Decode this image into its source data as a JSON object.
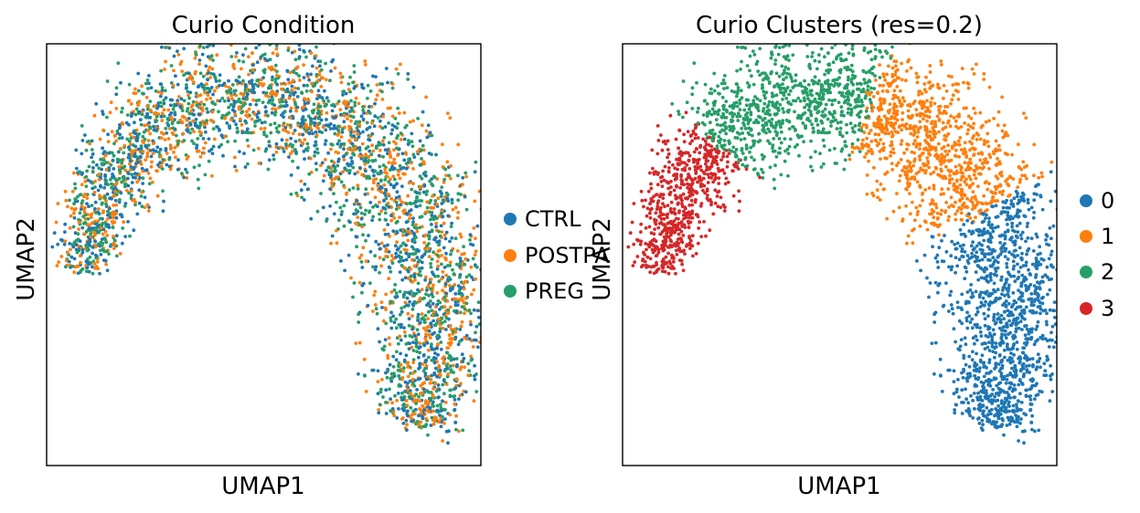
{
  "chart_data": [
    {
      "type": "scatter",
      "title": "Curio Condition",
      "xlabel": "UMAP1",
      "ylabel": "UMAP2",
      "grid": false,
      "legend_placement": "right",
      "color_by": "condition",
      "series": [
        {
          "name": "CTRL",
          "color": "#1f77b4"
        },
        {
          "name": "POSTPA",
          "color": "#ff7f0e"
        },
        {
          "name": "PREG",
          "color": "#279e68"
        }
      ]
    },
    {
      "type": "scatter",
      "title": "Curio Clusters (res=0.2)",
      "xlabel": "UMAP1",
      "ylabel": "UMAP2",
      "grid": false,
      "legend_placement": "right",
      "color_by": "cluster",
      "series": [
        {
          "name": "0",
          "color": "#1f77b4"
        },
        {
          "name": "1",
          "color": "#ff7f0e"
        },
        {
          "name": "2",
          "color": "#279e68"
        },
        {
          "name": "3",
          "color": "#d62728"
        }
      ]
    }
  ]
}
